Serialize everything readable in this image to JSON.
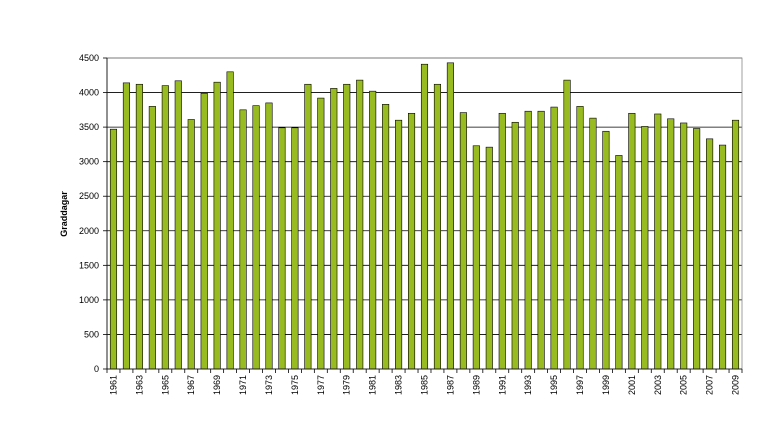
{
  "chart_data": {
    "type": "bar",
    "title": "",
    "xlabel": "",
    "ylabel": "Graddagar",
    "ylim": [
      0,
      4500
    ],
    "yticks": [
      0,
      500,
      1000,
      1500,
      2000,
      2500,
      3000,
      3500,
      4000,
      4500
    ],
    "grid": true,
    "bar_color": "#99bb22",
    "categories": [
      "1961",
      "1962",
      "1963",
      "1964",
      "1965",
      "1966",
      "1967",
      "1968",
      "1969",
      "1970",
      "1971",
      "1972",
      "1973",
      "1974",
      "1975",
      "1976",
      "1977",
      "1978",
      "1979",
      "1980",
      "1981",
      "1982",
      "1983",
      "1984",
      "1985",
      "1986",
      "1987",
      "1988",
      "1989",
      "1990",
      "1991",
      "1992",
      "1993",
      "1994",
      "1995",
      "1996",
      "1997",
      "1998",
      "1999",
      "2000",
      "2001",
      "2002",
      "2003",
      "2004",
      "2005",
      "2006",
      "2007",
      "2008",
      "2009"
    ],
    "xtick_labels": [
      "1961",
      "",
      "1963",
      "",
      "1965",
      "",
      "1967",
      "",
      "1969",
      "",
      "1971",
      "",
      "1973",
      "",
      "1975",
      "",
      "1977",
      "",
      "1979",
      "",
      "1981",
      "",
      "1983",
      "",
      "1985",
      "",
      "1987",
      "",
      "1989",
      "",
      "1991",
      "",
      "1993",
      "",
      "1995",
      "",
      "1997",
      "",
      "1999",
      "",
      "2001",
      "",
      "2003",
      "",
      "2005",
      "",
      "2007",
      "",
      "2009"
    ],
    "values": [
      3470,
      4140,
      4120,
      3800,
      4100,
      4170,
      3610,
      3990,
      4150,
      4300,
      3750,
      3810,
      3850,
      3490,
      3490,
      4120,
      3920,
      4060,
      4120,
      4180,
      4020,
      3830,
      3600,
      3700,
      4410,
      4120,
      4430,
      3710,
      3230,
      3210,
      3700,
      3570,
      3730,
      3730,
      3790,
      4180,
      3800,
      3630,
      3440,
      3090,
      3700,
      3510,
      3690,
      3620,
      3560,
      3480,
      3330,
      3240,
      3600
    ]
  }
}
